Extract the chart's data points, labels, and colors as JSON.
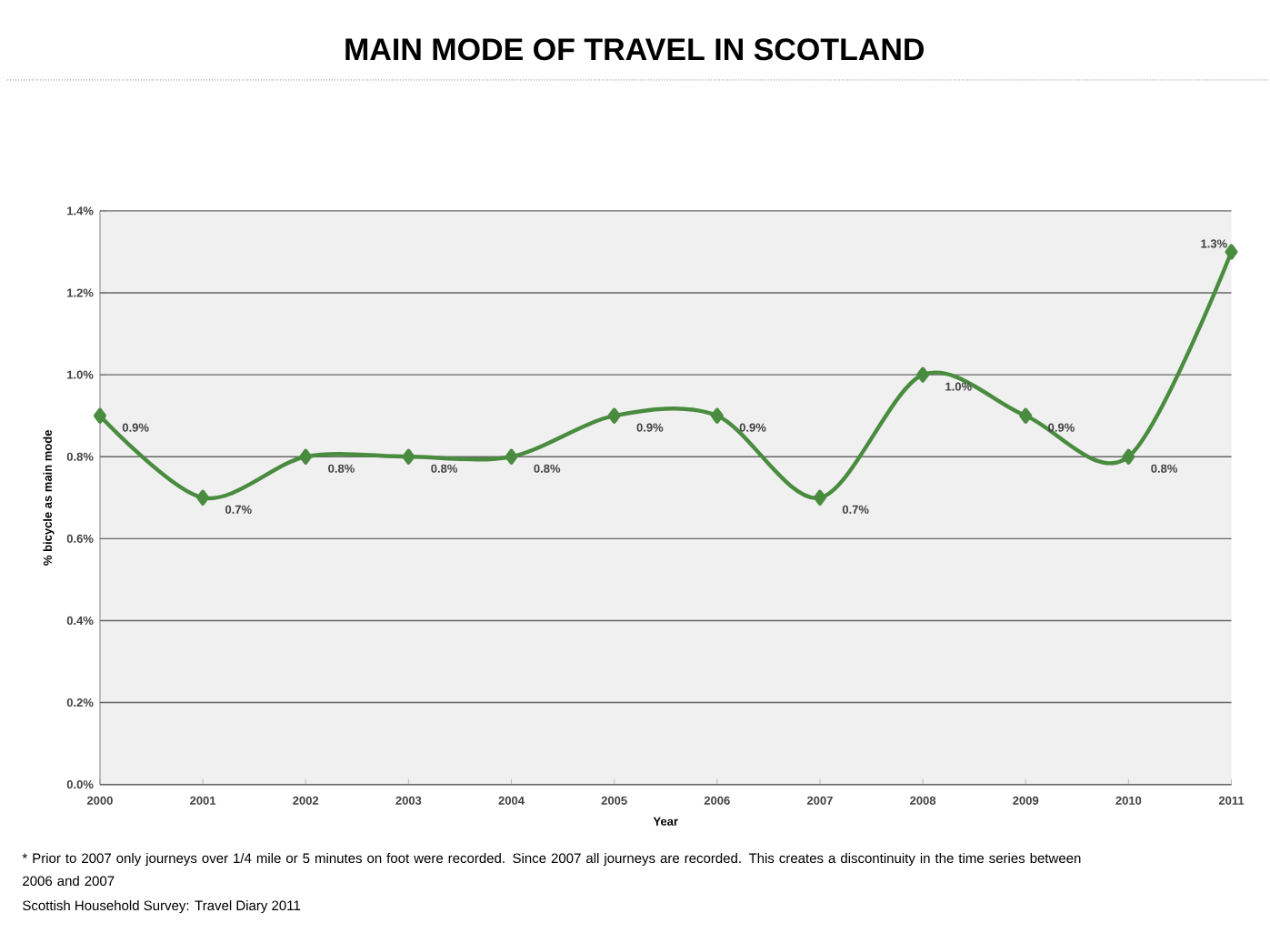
{
  "chart_data": {
    "type": "line",
    "title": "MAIN MODE OF TRAVEL IN SCOTLAND",
    "xlabel": "Year",
    "ylabel": "% bicycle as main mode",
    "x": [
      2000,
      2001,
      2002,
      2003,
      2004,
      2005,
      2006,
      2007,
      2008,
      2009,
      2010,
      2011
    ],
    "xlim": [
      2000,
      2011
    ],
    "xticks": [
      2000,
      2001,
      2002,
      2003,
      2004,
      2005,
      2006,
      2007,
      2008,
      2009,
      2010,
      2011
    ],
    "ylim": [
      0,
      1.4
    ],
    "yticks": [
      {
        "value": 0,
        "label": "0.0%"
      },
      {
        "value": 0.2,
        "label": "0.2%"
      },
      {
        "value": 0.4,
        "label": "0.4%"
      },
      {
        "value": 0.6,
        "label": "0.6%"
      },
      {
        "value": 0.8,
        "label": "0.8%"
      },
      {
        "value": 1.0,
        "label": "1.0%"
      },
      {
        "value": 1.2,
        "label": "1.2%"
      },
      {
        "value": 1.4,
        "label": "1.4%"
      }
    ],
    "values": [
      0.9,
      0.7,
      0.8,
      0.8,
      0.8,
      0.9,
      0.9,
      0.7,
      1.0,
      0.9,
      0.8,
      1.3
    ],
    "value_labels": [
      "0.9%",
      "0.7%",
      "0.8%",
      "0.8%",
      "0.8%",
      "0.9%",
      "0.9%",
      "0.7%",
      "1.0%",
      "0.9%",
      "0.8%",
      "1.3%"
    ],
    "color": "#4a8c3f",
    "marker": "diamond",
    "grid": "y",
    "annotations": [
      "* Prior to 2007 only journeys over 1/4 mile or 5 minutes on foot were recorded. Since 2007 all journeys are recorded. This creates a discontinuity in the time series between 2006 and 2007",
      "Scottish Household Survey: Travel Diary 2011"
    ]
  }
}
